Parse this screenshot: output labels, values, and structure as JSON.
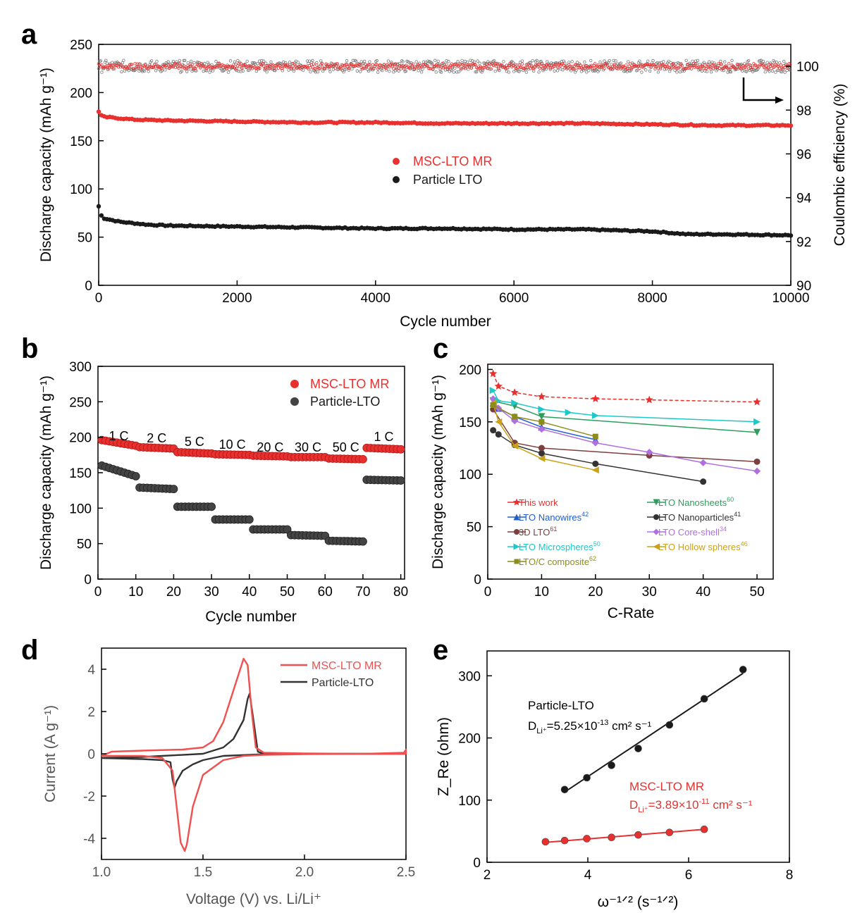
{
  "chart_data": [
    {
      "panel": "a",
      "type": "scatter",
      "xlabel": "Cycle number",
      "ylabel": "Discharge capacity (mAh g⁻¹)",
      "y2label": "Coulombic efficiency (%)",
      "xlim": [
        0,
        10000
      ],
      "ylim": [
        0,
        250
      ],
      "y2lim": [
        90,
        101
      ],
      "xticks": [
        "0",
        "2000",
        "4000",
        "6000",
        "8000",
        "10000"
      ],
      "yticks": [
        "0",
        "50",
        "100",
        "150",
        "200",
        "250"
      ],
      "y2ticks": [
        "90",
        "92",
        "94",
        "96",
        "98",
        "100"
      ],
      "legend_position": "center",
      "series": [
        {
          "name": "MSC-LTO MR",
          "color": "#e8302f",
          "x": [
            0,
            50,
            500,
            1000,
            2000,
            3000,
            4000,
            5000,
            6000,
            7000,
            8000,
            9000,
            10000
          ],
          "values": [
            180,
            175,
            172,
            171,
            170,
            169,
            169,
            168,
            168,
            168,
            167,
            166,
            166
          ]
        },
        {
          "name": "Particle LTO",
          "color": "#1a1a1a",
          "x": [
            0,
            50,
            300,
            700,
            1000,
            2000,
            3000,
            4000,
            5000,
            6000,
            7000,
            7500,
            8000,
            8500,
            9000,
            10000
          ],
          "values": [
            82,
            70,
            66,
            63,
            62,
            61,
            60,
            59,
            59,
            58,
            58,
            57,
            56,
            53,
            53,
            52
          ]
        },
        {
          "name": "CE MSC-LTO MR",
          "axis": "right",
          "color": "#e8302f",
          "x": [
            0,
            10000
          ],
          "values": [
            100,
            100
          ]
        },
        {
          "name": "CE Particle LTO",
          "axis": "right",
          "color": "#777777",
          "x": [
            0,
            10000
          ],
          "values": [
            100,
            100
          ]
        }
      ]
    },
    {
      "panel": "b",
      "type": "scatter",
      "xlabel": "Cycle number",
      "ylabel": "Discharge capacity (mAh g⁻¹)",
      "xlim": [
        0,
        81
      ],
      "ylim": [
        0,
        300
      ],
      "xticks": [
        "0",
        "10",
        "20",
        "30",
        "40",
        "50",
        "60",
        "70",
        "80"
      ],
      "yticks": [
        "0",
        "50",
        "100",
        "150",
        "200",
        "250",
        "300"
      ],
      "legend_position": "top-right",
      "rate_labels": [
        "1 C",
        "2 C",
        "5 C",
        "10 C",
        "20 C",
        "30 C",
        "50 C",
        "1 C"
      ],
      "segments": [
        {
          "from": 1,
          "to": 10,
          "msc": [
            196,
            188
          ],
          "particle": [
            160,
            145
          ]
        },
        {
          "from": 11,
          "to": 20,
          "msc": [
            186,
            184
          ],
          "particle": [
            129,
            127
          ]
        },
        {
          "from": 21,
          "to": 30,
          "msc": [
            179,
            177
          ],
          "particle": [
            102,
            102
          ]
        },
        {
          "from": 31,
          "to": 40,
          "msc": [
            176,
            175
          ],
          "particle": [
            84,
            84
          ]
        },
        {
          "from": 41,
          "to": 50,
          "msc": [
            174,
            173
          ],
          "particle": [
            70,
            70
          ]
        },
        {
          "from": 51,
          "to": 60,
          "msc": [
            172,
            172
          ],
          "particle": [
            62,
            61
          ]
        },
        {
          "from": 61,
          "to": 70,
          "msc": [
            170,
            169
          ],
          "particle": [
            54,
            53
          ]
        },
        {
          "from": 71,
          "to": 80,
          "msc": [
            185,
            183
          ],
          "particle": [
            140,
            139
          ]
        }
      ],
      "series": [
        {
          "name": "MSC-LTO MR",
          "color": "#e8302f"
        },
        {
          "name": "Particle-LTO",
          "color": "#444444"
        }
      ]
    },
    {
      "panel": "c",
      "type": "line",
      "xlabel": "C-Rate",
      "ylabel": "Discharge capacity (mAh g⁻¹)",
      "xlim": [
        0,
        53
      ],
      "ylim": [
        0,
        205
      ],
      "xticks": [
        "0",
        "10",
        "20",
        "30",
        "40",
        "50"
      ],
      "yticks": [
        "0",
        "50",
        "100",
        "150",
        "200"
      ],
      "legend_position": "bottom-left",
      "series": [
        {
          "name": "This work",
          "sup": "",
          "marker": "star",
          "color": "#e8302f",
          "x": [
            1,
            2,
            5,
            10,
            20,
            30,
            50
          ],
          "values": [
            196,
            184,
            178,
            174,
            172,
            171,
            169
          ]
        },
        {
          "name": "LTO Nanosheets",
          "sup": "60",
          "marker": "tri-down",
          "color": "#2e9e5e",
          "x": [
            1,
            5,
            10,
            50
          ],
          "values": [
            170,
            165,
            155,
            140
          ]
        },
        {
          "name": "LTO Nanowires",
          "sup": "42",
          "marker": "tri-up",
          "color": "#1f5fd6",
          "x": [
            1,
            2,
            5,
            10,
            20
          ],
          "values": [
            168,
            163,
            155,
            145,
            133
          ]
        },
        {
          "name": "LTO Nanoparticles",
          "sup": "41",
          "marker": "circle",
          "color": "#333333",
          "x": [
            1,
            2,
            5,
            10,
            20,
            40
          ],
          "values": [
            142,
            138,
            128,
            120,
            110,
            93
          ]
        },
        {
          "name": "3D LTO",
          "sup": "61",
          "marker": "circle",
          "color": "#7b3f3f",
          "x": [
            1,
            5,
            10,
            30,
            50
          ],
          "values": [
            162,
            130,
            125,
            118,
            112
          ]
        },
        {
          "name": "LTO Core-shell",
          "sup": "34",
          "marker": "diamond",
          "color": "#b06ee0",
          "x": [
            1,
            2,
            5,
            10,
            20,
            30,
            40,
            50
          ],
          "values": [
            172,
            163,
            151,
            143,
            130,
            121,
            111,
            103
          ]
        },
        {
          "name": "LTO Microspheres",
          "sup": "50",
          "marker": "tri-right",
          "color": "#1ec8c8",
          "x": [
            1,
            2,
            5,
            10,
            15,
            20,
            50
          ],
          "values": [
            180,
            170,
            168,
            162,
            159,
            156,
            150
          ]
        },
        {
          "name": "LTO Hollow spheres",
          "sup": "46",
          "marker": "tri-left",
          "color": "#c9a21a",
          "x": [
            1,
            2,
            5,
            10,
            20
          ],
          "values": [
            168,
            150,
            127,
            115,
            104
          ]
        },
        {
          "name": "LTO/C composite",
          "sup": "62",
          "marker": "square",
          "color": "#8c8c1a",
          "x": [
            1,
            5,
            10,
            20
          ],
          "values": [
            166,
            155,
            150,
            136
          ]
        }
      ]
    },
    {
      "panel": "d",
      "type": "line",
      "xlabel": "Voltage (V) vs. Li/Li⁺",
      "ylabel": "Current (A g⁻¹)",
      "xlim": [
        1.0,
        2.5
      ],
      "ylim": [
        -5,
        5
      ],
      "xticks": [
        "1.0",
        "1.5",
        "2.0",
        "2.5"
      ],
      "yticks": [
        "-4",
        "-2",
        "0",
        "2",
        "4"
      ],
      "legend_position": "top-right",
      "series": [
        {
          "name": "MSC-LTO MR",
          "color": "#f05050",
          "x": [
            1.0,
            1.05,
            1.2,
            1.4,
            1.5,
            1.55,
            1.6,
            1.65,
            1.7,
            1.72,
            1.74,
            1.76,
            1.8,
            2.0,
            2.3,
            2.49,
            2.5,
            2.5,
            2.3,
            2.0,
            1.8,
            1.7,
            1.6,
            1.5,
            1.45,
            1.42,
            1.41,
            1.39,
            1.37,
            1.35,
            1.3,
            1.2,
            1.05,
            1.0
          ],
          "y": [
            -0.1,
            0.1,
            0.15,
            0.2,
            0.3,
            0.6,
            1.5,
            3.0,
            4.5,
            4.2,
            2.0,
            0.3,
            0.05,
            0.02,
            0.0,
            0.05,
            0.2,
            0.0,
            0.0,
            -0.02,
            -0.05,
            -0.1,
            -0.3,
            -1.0,
            -2.5,
            -4.3,
            -4.6,
            -4.2,
            -2.5,
            -0.8,
            -0.2,
            -0.1,
            -0.1,
            -0.1
          ]
        },
        {
          "name": "Particle-LTO",
          "color": "#333333",
          "x": [
            1.0,
            1.2,
            1.5,
            1.6,
            1.65,
            1.7,
            1.72,
            1.73,
            1.75,
            1.77,
            1.8,
            2.0,
            2.5,
            2.5,
            2.0,
            1.8,
            1.6,
            1.5,
            1.45,
            1.4,
            1.37,
            1.36,
            1.35,
            1.34,
            1.3,
            1.2,
            1.0
          ],
          "y": [
            -0.2,
            -0.15,
            0.0,
            0.3,
            0.7,
            1.6,
            2.6,
            2.85,
            1.5,
            0.1,
            0.0,
            0.0,
            0.0,
            0.0,
            0.0,
            -0.02,
            -0.1,
            -0.3,
            -0.5,
            -0.8,
            -1.3,
            -1.6,
            -1.2,
            -0.4,
            -0.3,
            -0.25,
            -0.2
          ]
        }
      ]
    },
    {
      "panel": "e",
      "type": "scatter",
      "xlabel": "ω⁻¹ᐟ² (s⁻¹ᐟ²)",
      "ylabel": "Z_Re (ohm)",
      "xlim": [
        2,
        8
      ],
      "ylim": [
        0,
        340
      ],
      "xticks": [
        "2",
        "4",
        "6",
        "8"
      ],
      "yticks": [
        "0",
        "100",
        "200",
        "300"
      ],
      "annotations": [
        {
          "series": "Particle-LTO",
          "line1": "Particle-LTO",
          "line2_prefix": "D",
          "line2_sub": "Li⁺",
          "line2_text": "=5.25×10",
          "line2_sup": "-13",
          "line2_unit": " cm² s⁻¹"
        },
        {
          "series": "MSC-LTO MR",
          "line1": "MSC-LTO MR",
          "line2_prefix": "D",
          "line2_sub": "Li⁺",
          "line2_text": "=3.89×10",
          "line2_sup": "-11",
          "line2_unit": " cm² s⁻¹"
        }
      ],
      "series": [
        {
          "name": "Particle-LTO",
          "color": "#1a1a1a",
          "x": [
            3.54,
            3.98,
            4.47,
            5.0,
            5.62,
            6.31,
            7.08
          ],
          "values": [
            117,
            136,
            156,
            183,
            221,
            263,
            310
          ],
          "fit": [
            [
              3.54,
              113
            ],
            [
              7.08,
              304
            ]
          ]
        },
        {
          "name": "MSC-LTO MR",
          "color": "#e8302f",
          "x": [
            3.16,
            3.54,
            3.98,
            4.47,
            5.0,
            5.62,
            6.31
          ],
          "values": [
            33,
            35,
            38,
            40,
            44,
            48,
            53
          ],
          "fit": [
            [
              3.16,
              32
            ],
            [
              6.31,
              53
            ]
          ]
        }
      ]
    }
  ],
  "panel_letters": [
    "a",
    "b",
    "c",
    "d",
    "e"
  ],
  "legends": {
    "a": [
      "MSC-LTO MR",
      "Particle LTO"
    ],
    "b": [
      "MSC-LTO MR",
      "Particle-LTO"
    ],
    "d": [
      "MSC-LTO MR",
      "Particle-LTO"
    ]
  }
}
